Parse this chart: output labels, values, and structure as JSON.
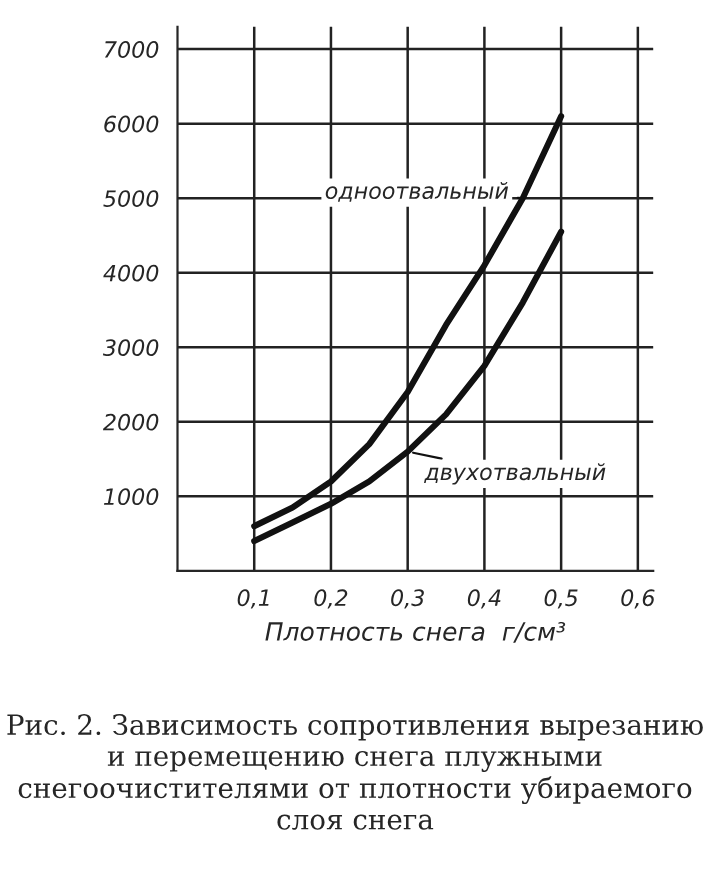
{
  "chart_data": {
    "type": "line",
    "xlabel": "Плотность снега  г/см³",
    "x": [
      0.1,
      0.15,
      0.2,
      0.25,
      0.3,
      0.35,
      0.4,
      0.45,
      0.5
    ],
    "series": [
      {
        "name": "одноотвальный",
        "color": "#111111",
        "values": [
          600,
          850,
          1200,
          1700,
          2400,
          3300,
          4100,
          5000,
          6100
        ]
      },
      {
        "name": "двухотвальный",
        "color": "#111111",
        "values": [
          400,
          650,
          900,
          1200,
          1600,
          2100,
          2750,
          3600,
          4550
        ]
      }
    ],
    "xlim": [
      0,
      0.62
    ],
    "ylim": [
      0,
      7300
    ],
    "xticks": [
      {
        "value": 0.1,
        "label": "0,1"
      },
      {
        "value": 0.2,
        "label": "0,2"
      },
      {
        "value": 0.3,
        "label": "0,3"
      },
      {
        "value": 0.4,
        "label": "0,4"
      },
      {
        "value": 0.5,
        "label": "0,5"
      },
      {
        "value": 0.6,
        "label": "0,6"
      }
    ],
    "yticks": [
      1000,
      2000,
      3000,
      4000,
      5000,
      6000,
      7000
    ],
    "grid": true,
    "line_style": "solid",
    "marker": "none",
    "annotations": [
      "Рис. 2. Зависимость сопротивления вырезанию и перемещению снега плужными снегоочистителями от плотности убираемого слоя снега"
    ]
  }
}
